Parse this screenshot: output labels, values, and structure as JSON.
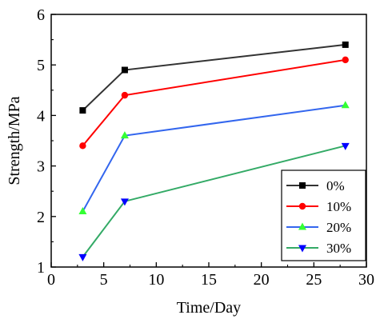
{
  "chart_data": {
    "type": "line",
    "xlabel": "Time/Day",
    "ylabel": "Strength/MPa",
    "xlim": [
      0,
      30
    ],
    "ylim": [
      1,
      6
    ],
    "xticks": [
      0,
      5,
      10,
      15,
      20,
      25,
      30
    ],
    "yticks": [
      1,
      2,
      3,
      4,
      5,
      6
    ],
    "grid": false,
    "legend_position": "bottom-right",
    "series": [
      {
        "name": "0%",
        "color": "#000000",
        "line_color": "#333333",
        "marker": "square",
        "x": [
          3,
          7,
          28
        ],
        "y": [
          4.1,
          4.9,
          5.4
        ]
      },
      {
        "name": "10%",
        "color": "#ff0000",
        "line_color": "#ff0000",
        "marker": "circle",
        "x": [
          3,
          7,
          28
        ],
        "y": [
          3.4,
          4.4,
          5.1
        ]
      },
      {
        "name": "20%",
        "color": "#33ff33",
        "line_color": "#3366ee",
        "marker": "triangle-up",
        "x": [
          3,
          7,
          28
        ],
        "y": [
          2.1,
          3.6,
          4.2
        ]
      },
      {
        "name": "30%",
        "color": "#0000ff",
        "line_color": "#33aa66",
        "marker": "triangle-down",
        "x": [
          3,
          7,
          28
        ],
        "y": [
          1.2,
          2.3,
          3.4
        ]
      }
    ]
  }
}
